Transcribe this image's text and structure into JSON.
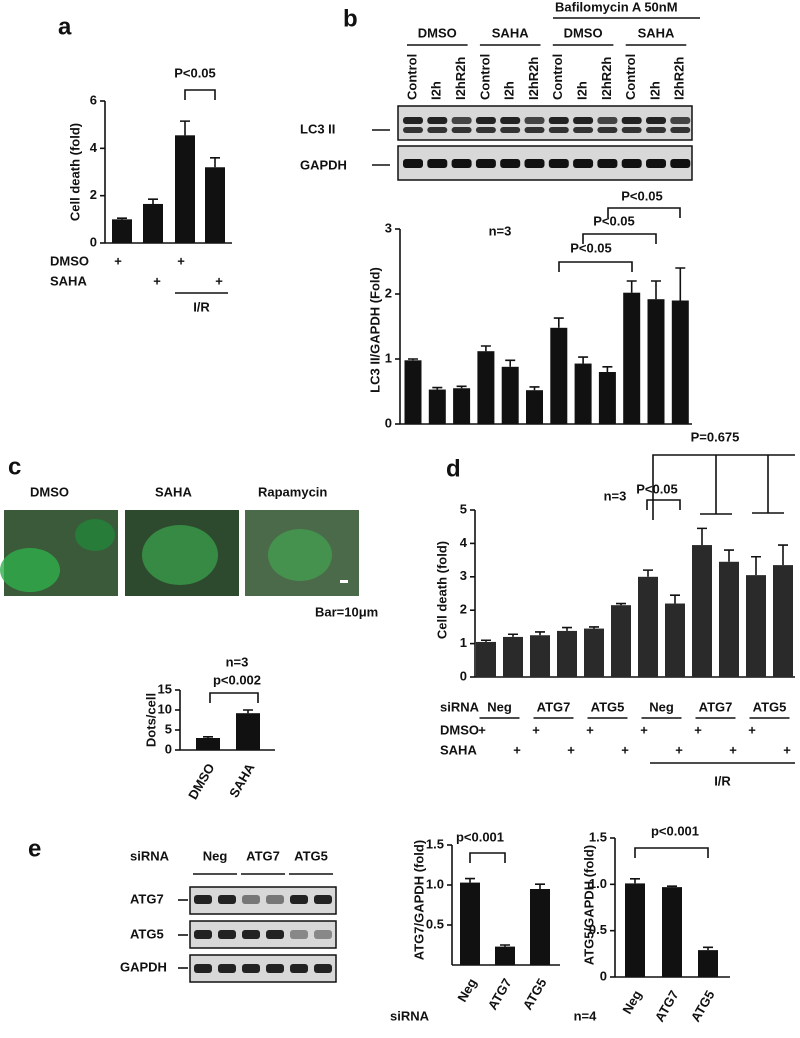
{
  "panel_labels": [
    "a",
    "b",
    "c",
    "d",
    "e"
  ],
  "blot_b": {
    "header": "Bafilomycin A 50nM",
    "groups": [
      "DMSO",
      "SAHA",
      "DMSO",
      "SAHA"
    ],
    "lanes": [
      "Control",
      "I2h",
      "I2hR2h",
      "Control",
      "I2h",
      "I2hR2h",
      "Control",
      "I2h",
      "I2hR2h",
      "Control",
      "I2h",
      "I2hR2h"
    ],
    "bands": [
      "LC3 II",
      "GAPDH"
    ]
  },
  "images_c": {
    "labels": [
      "DMSO",
      "SAHA",
      "Rapamycin"
    ],
    "scale": "Bar=10μm"
  },
  "blot_e": {
    "row_label": "siRNA",
    "groups": [
      "Neg",
      "ATG7",
      "ATG5"
    ],
    "bands": [
      "ATG7",
      "ATG5",
      "GAPDH"
    ]
  },
  "chart_data": [
    {
      "type": "bar",
      "ylabel": "Cell death (fold)",
      "categories": [
        null,
        null,
        null,
        null
      ],
      "values": [
        1.0,
        1.65,
        4.55,
        3.2
      ],
      "errors": [
        0.05,
        0.2,
        0.6,
        0.4
      ],
      "color": "#111111",
      "ylim": [
        0,
        6
      ],
      "yticks": [
        0,
        2,
        4,
        6
      ],
      "annotations": [
        "P<0.05"
      ],
      "rows": [
        {
          "name": "DMSO",
          "marks": [
            "+",
            null,
            "+",
            null
          ]
        },
        {
          "name": "SAHA",
          "marks": [
            null,
            "+",
            null,
            "+"
          ]
        }
      ],
      "span_label": "I/R"
    },
    {
      "type": "bar",
      "ylabel": "LC3 II/GAPDH (Fold)",
      "categories": [
        null,
        null,
        null,
        null,
        null,
        null,
        null,
        null,
        null,
        null,
        null,
        null
      ],
      "values": [
        0.98,
        0.53,
        0.55,
        1.12,
        0.88,
        0.52,
        1.48,
        0.93,
        0.8,
        2.02,
        1.92,
        1.9
      ],
      "errors": [
        0.02,
        0.03,
        0.03,
        0.08,
        0.1,
        0.05,
        0.15,
        0.1,
        0.08,
        0.18,
        0.28,
        0.5
      ],
      "color": "#111111",
      "ylim": [
        0,
        3
      ],
      "yticks": [
        0,
        1,
        2,
        3
      ],
      "annotations": [
        "n=3",
        "P<0.05",
        "P<0.05",
        "P<0.05"
      ]
    },
    {
      "type": "bar",
      "ylabel": "Dots/cell",
      "categories": [
        "DMSO",
        "SAHA"
      ],
      "values": [
        3.0,
        9.2
      ],
      "errors": [
        0.3,
        0.8
      ],
      "color": "#111111",
      "ylim": [
        0,
        15
      ],
      "yticks": [
        0,
        5,
        10,
        15
      ],
      "annotations": [
        "n=3",
        "p<0.002"
      ]
    },
    {
      "type": "bar",
      "ylabel": "Cell death (fold)",
      "categories": [
        null,
        null,
        null,
        null,
        null,
        null,
        null,
        null,
        null,
        null,
        null,
        null
      ],
      "values": [
        1.05,
        1.2,
        1.25,
        1.38,
        1.45,
        2.15,
        3.0,
        2.2,
        3.95,
        3.45,
        3.05,
        3.35
      ],
      "errors": [
        0.05,
        0.08,
        0.1,
        0.1,
        0.05,
        0.05,
        0.2,
        0.25,
        0.5,
        0.35,
        0.55,
        0.6
      ],
      "color": "#2a2a2a",
      "ylim": [
        0,
        5
      ],
      "yticks": [
        0,
        1,
        2,
        3,
        4,
        5
      ],
      "annotations": [
        "n=3",
        "P<0.05",
        "P=0.675"
      ],
      "group_title": "siRNA",
      "groups": [
        "Neg",
        "ATG7",
        "ATG5",
        "Neg",
        "ATG7",
        "ATG5"
      ],
      "rows": [
        {
          "name": "DMSO",
          "marks": [
            "+",
            null,
            "+",
            null,
            "+",
            null,
            "+",
            null,
            "+",
            null,
            "+",
            null
          ]
        },
        {
          "name": "SAHA",
          "marks": [
            null,
            "+",
            null,
            "+",
            null,
            "+",
            null,
            "+",
            null,
            "+",
            null,
            "+"
          ]
        }
      ],
      "span_label": "I/R"
    },
    {
      "type": "bar",
      "ylabel": "ATG7/GAPDH (fold)",
      "categories": [
        "Neg",
        "ATG7",
        "ATG5"
      ],
      "values": [
        1.03,
        0.23,
        0.95
      ],
      "errors": [
        0.05,
        0.02,
        0.06
      ],
      "color": "#111111",
      "ylim": [
        0,
        1.5
      ],
      "yticks": [
        0.5,
        {
          "value": 1.0,
          "label": "1.0"
        },
        1.5
      ],
      "annotations": [
        "p<0.001"
      ],
      "xlabel": "siRNA"
    },
    {
      "type": "bar",
      "ylabel": "ATG5/GAPDH (fold)",
      "categories": [
        "Neg",
        "ATG7",
        "ATG5"
      ],
      "values": [
        1.01,
        0.97,
        0.29
      ],
      "errors": [
        0.05,
        0.01,
        0.03
      ],
      "color": "#111111",
      "ylim": [
        0,
        1.5
      ],
      "yticks": [
        0,
        0.5,
        {
          "value": 1.0,
          "label": "1.0"
        },
        1.5
      ],
      "annotations": [
        "p<0.001",
        "n=4"
      ]
    }
  ]
}
